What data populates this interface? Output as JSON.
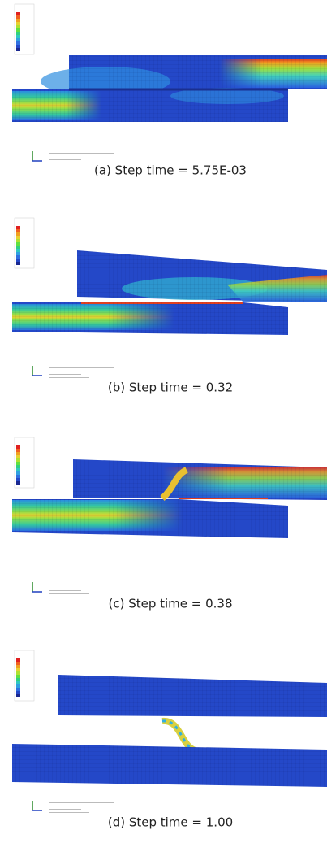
{
  "figure": {
    "panels": [
      {
        "caption": "(a) Step time = 5.75E-03"
      },
      {
        "caption": "(b) Step time = 0.32"
      },
      {
        "caption": "(c) Step time = 0.38"
      },
      {
        "caption": "(d) Step time = 1.00"
      }
    ]
  }
}
